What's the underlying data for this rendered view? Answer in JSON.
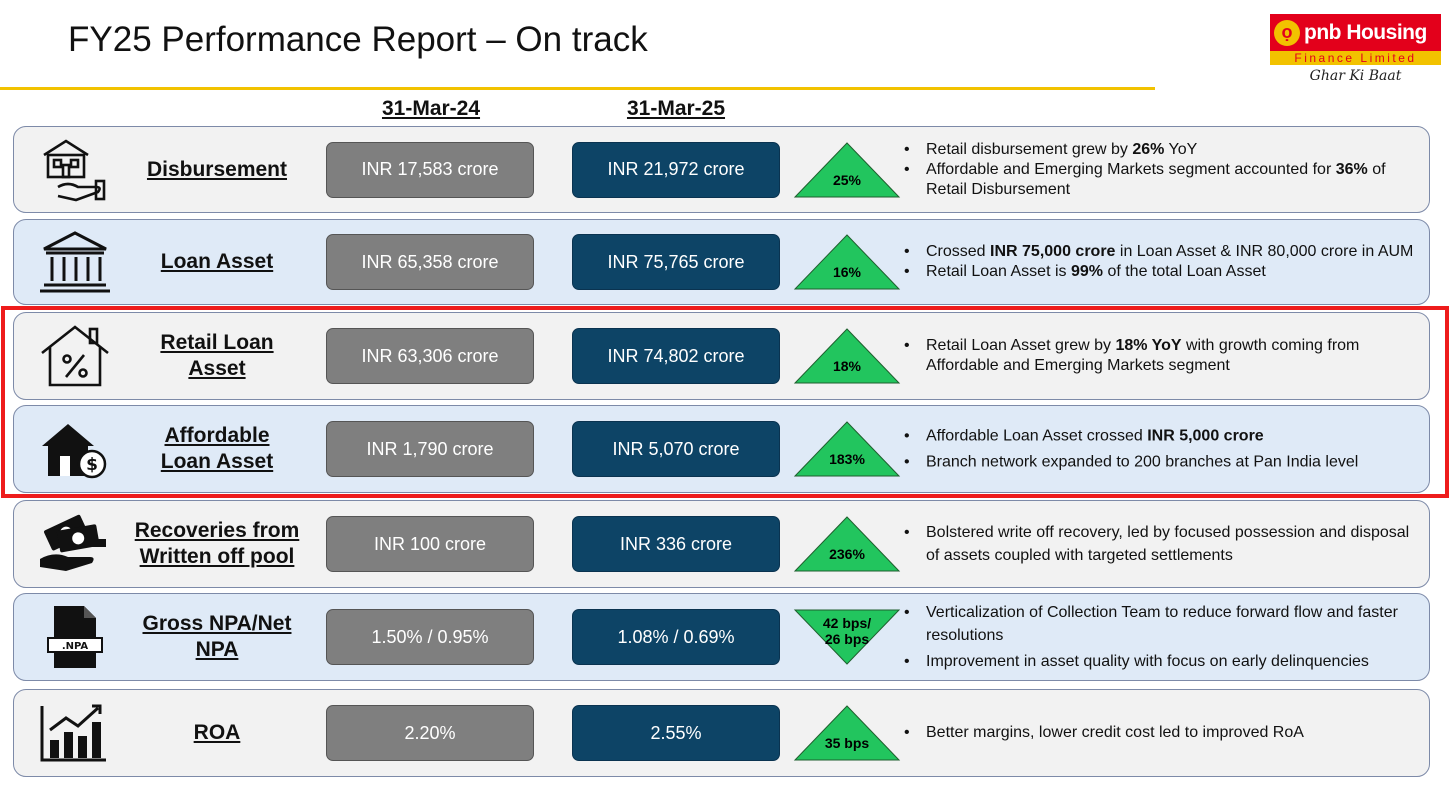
{
  "header": {
    "title": "FY25 Performance Report – On track",
    "col_prev": "31-Mar-24",
    "col_curr": "31-Mar-25"
  },
  "logo": {
    "brand": "pnb Housing",
    "sub": "Finance Limited",
    "tagline": "Ghar Ki Baat",
    "colors": {
      "red": "#e3001b",
      "yellow": "#f2c200"
    }
  },
  "rows": [
    {
      "label_lines": [
        "Disbursement"
      ],
      "prev": "INR 17,583 crore",
      "curr": "INR 21,972 crore",
      "change_lines": [
        "25%"
      ],
      "direction": "up",
      "icon": "house-in-hand-icon"
    },
    {
      "label_lines": [
        "Loan Asset"
      ],
      "prev": "INR 65,358 crore",
      "curr": "INR 75,765 crore",
      "change_lines": [
        "16%"
      ],
      "direction": "up",
      "icon": "bank-building-icon"
    },
    {
      "label_lines": [
        "Retail Loan",
        "Asset"
      ],
      "prev": "INR 63,306 crore",
      "curr": "INR 74,802 crore",
      "change_lines": [
        "18%"
      ],
      "direction": "up",
      "icon": "house-percent-icon"
    },
    {
      "label_lines": [
        "Affordable",
        "Loan Asset"
      ],
      "prev": "INR 1,790 crore",
      "curr": "INR 5,070 crore",
      "change_lines": [
        "183%"
      ],
      "direction": "up",
      "icon": "house-dollar-icon"
    },
    {
      "label_lines": [
        "Recoveries from",
        "Written off pool"
      ],
      "prev": "INR 100 crore",
      "curr": "INR 336 crore",
      "change_lines": [
        "236%"
      ],
      "direction": "up",
      "icon": "money-hand-icon"
    },
    {
      "label_lines": [
        "Gross NPA/Net",
        "NPA"
      ],
      "prev": "1.50% / 0.95%",
      "curr": "1.08% / 0.69%",
      "change_lines": [
        "42 bps/",
        "26 bps"
      ],
      "direction": "down",
      "icon": "npa-file-icon"
    },
    {
      "label_lines": [
        "ROA"
      ],
      "prev": "2.20%",
      "curr": "2.55%",
      "change_lines": [
        "35 bps"
      ],
      "direction": "up",
      "icon": "bar-chart-growth-icon"
    }
  ],
  "notes": [
    [
      [
        {
          "t": "Retail disbursement grew by "
        },
        {
          "t": "26%",
          "b": true
        },
        {
          "t": " YoY"
        }
      ],
      [
        {
          "t": "Affordable and Emerging Markets segment accounted for "
        },
        {
          "t": "36%",
          "b": true
        },
        {
          "t": " of Retail Disbursement"
        }
      ]
    ],
    [
      [
        {
          "t": "Crossed "
        },
        {
          "t": "INR 75,000 crore",
          "b": true
        },
        {
          "t": " in Loan Asset & INR 80,000 crore  in AUM"
        }
      ],
      [
        {
          "t": "Retail Loan Asset is "
        },
        {
          "t": "99%",
          "b": true
        },
        {
          "t": " of the total Loan Asset"
        }
      ]
    ],
    [
      [
        {
          "t": "Retail Loan Asset grew by "
        },
        {
          "t": "18% YoY",
          "b": true
        },
        {
          "t": " with growth coming from Affordable and Emerging Markets segment"
        }
      ]
    ],
    [
      [
        {
          "t": "Affordable Loan Asset crossed "
        },
        {
          "t": "INR 5,000 crore",
          "b": true
        }
      ],
      [
        {
          "t": "Branch network expanded to 200 branches at Pan India level"
        }
      ]
    ],
    [
      [
        {
          "t": "Bolstered write off recovery, led by focused possession and disposal of assets coupled with targeted settlements"
        }
      ]
    ],
    [
      [
        {
          "t": "Verticalization of Collection Team to reduce forward flow and faster resolutions"
        }
      ],
      [
        {
          "t": "Improvement in asset quality with focus on early delinquencies"
        }
      ]
    ],
    [
      [
        {
          "t": "Better margins, lower credit cost led to improved RoA"
        }
      ]
    ]
  ],
  "colors": {
    "prev_box": "#7f7f7f",
    "curr_box": "#0d4466",
    "triangle": "#22c55e",
    "highlight": "#ee1c1c",
    "row_gray": "#f2f2f2",
    "row_blue": "#dfeaf7"
  }
}
